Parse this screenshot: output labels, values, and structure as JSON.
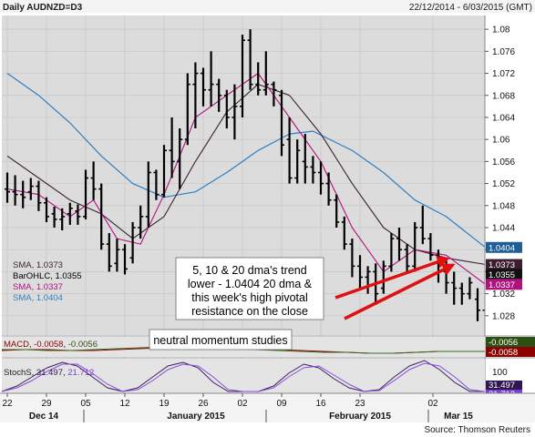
{
  "header": {
    "title": "Daily AUDNZD=D3",
    "range": "22/12/2014 - 6/03/2015 (GMT)"
  },
  "source": "Source: Thomson Reuters",
  "colors": {
    "panel_bg": "#dcdcdc",
    "bars": "#000000",
    "sma5": "#b0127d",
    "sma10": "#3b1f2e",
    "sma20": "#2f7fc1",
    "macd": "#8b0000",
    "macd_signal": "#3d6b1f",
    "stoch_k": "#3b1f5c",
    "stoch_d": "#8a4be0",
    "arrow": "#e01010"
  },
  "chart_data": {
    "type": "ohlc",
    "instrument": "AUDNZD=D3",
    "ylim": [
      1.0245,
      1.0825
    ],
    "yticks": [
      "1.08",
      "1.076",
      "1.072",
      "1.068",
      "1.064",
      "1.06",
      "1.056",
      "1.052",
      "1.048",
      "1.044",
      "1.04",
      "1.036",
      "1.032",
      "1.028"
    ],
    "xticks": [
      "22",
      "29",
      "05",
      "12",
      "19",
      "26",
      "02",
      "09",
      "16",
      "23",
      "02"
    ],
    "month_labels": [
      "Dec 14",
      "January 2015",
      "February 2015",
      "Mar 15"
    ],
    "ohlc": [
      {
        "o": 1.051,
        "h": 1.054,
        "l": 1.0485,
        "c": 1.0505
      },
      {
        "o": 1.0505,
        "h": 1.0535,
        "l": 1.048,
        "c": 1.05
      },
      {
        "o": 1.05,
        "h": 1.0525,
        "l": 1.0475,
        "c": 1.0495
      },
      {
        "o": 1.0505,
        "h": 1.053,
        "l": 1.049,
        "c": 1.0515
      },
      {
        "o": 1.0515,
        "h": 1.0525,
        "l": 1.047,
        "c": 1.0485
      },
      {
        "o": 1.0485,
        "h": 1.0495,
        "l": 1.045,
        "c": 1.046
      },
      {
        "o": 1.0465,
        "h": 1.0478,
        "l": 1.044,
        "c": 1.0455
      },
      {
        "o": 1.0455,
        "h": 1.0475,
        "l": 1.0435,
        "c": 1.046
      },
      {
        "o": 1.0465,
        "h": 1.0485,
        "l": 1.0445,
        "c": 1.0475
      },
      {
        "o": 1.047,
        "h": 1.0482,
        "l": 1.0445,
        "c": 1.046
      },
      {
        "o": 1.046,
        "h": 1.0545,
        "l": 1.0455,
        "c": 1.053
      },
      {
        "o": 1.053,
        "h": 1.056,
        "l": 1.049,
        "c": 1.051
      },
      {
        "o": 1.051,
        "h": 1.052,
        "l": 1.04,
        "c": 1.041
      },
      {
        "o": 1.041,
        "h": 1.043,
        "l": 1.036,
        "c": 1.037
      },
      {
        "o": 1.0375,
        "h": 1.042,
        "l": 1.036,
        "c": 1.04
      },
      {
        "o": 1.04,
        "h": 1.041,
        "l": 1.0355,
        "c": 1.0365
      },
      {
        "o": 1.0385,
        "h": 1.045,
        "l": 1.0375,
        "c": 1.044
      },
      {
        "o": 1.044,
        "h": 1.048,
        "l": 1.042,
        "c": 1.046
      },
      {
        "o": 1.046,
        "h": 1.056,
        "l": 1.044,
        "c": 1.054
      },
      {
        "o": 1.054,
        "h": 1.0545,
        "l": 1.049,
        "c": 1.05
      },
      {
        "o": 1.05,
        "h": 1.059,
        "l": 1.0495,
        "c": 1.058
      },
      {
        "o": 1.058,
        "h": 1.064,
        "l": 1.053,
        "c": 1.056
      },
      {
        "o": 1.056,
        "h": 1.062,
        "l": 1.051,
        "c": 1.06
      },
      {
        "o": 1.06,
        "h": 1.072,
        "l": 1.059,
        "c": 1.07
      },
      {
        "o": 1.07,
        "h": 1.074,
        "l": 1.062,
        "c": 1.072
      },
      {
        "o": 1.072,
        "h": 1.073,
        "l": 1.066,
        "c": 1.069
      },
      {
        "o": 1.069,
        "h": 1.076,
        "l": 1.066,
        "c": 1.07
      },
      {
        "o": 1.07,
        "h": 1.071,
        "l": 1.065,
        "c": 1.068
      },
      {
        "o": 1.068,
        "h": 1.069,
        "l": 1.062,
        "c": 1.064
      },
      {
        "o": 1.064,
        "h": 1.07,
        "l": 1.06,
        "c": 1.066
      },
      {
        "o": 1.066,
        "h": 1.079,
        "l": 1.064,
        "c": 1.078
      },
      {
        "o": 1.078,
        "h": 1.08,
        "l": 1.069,
        "c": 1.07
      },
      {
        "o": 1.07,
        "h": 1.074,
        "l": 1.068,
        "c": 1.069
      },
      {
        "o": 1.069,
        "h": 1.076,
        "l": 1.068,
        "c": 1.07
      },
      {
        "o": 1.07,
        "h": 1.0705,
        "l": 1.066,
        "c": 1.069
      },
      {
        "o": 1.068,
        "h": 1.069,
        "l": 1.057,
        "c": 1.059
      },
      {
        "o": 1.06,
        "h": 1.064,
        "l": 1.052,
        "c": 1.053
      },
      {
        "o": 1.053,
        "h": 1.06,
        "l": 1.052,
        "c": 1.058
      },
      {
        "o": 1.056,
        "h": 1.061,
        "l": 1.052,
        "c": 1.055
      },
      {
        "o": 1.055,
        "h": 1.057,
        "l": 1.052,
        "c": 1.054
      },
      {
        "o": 1.054,
        "h": 1.056,
        "l": 1.05,
        "c": 1.052
      },
      {
        "o": 1.052,
        "h": 1.054,
        "l": 1.048,
        "c": 1.049
      },
      {
        "o": 1.049,
        "h": 1.05,
        "l": 1.044,
        "c": 1.045
      },
      {
        "o": 1.045,
        "h": 1.046,
        "l": 1.04,
        "c": 1.041
      },
      {
        "o": 1.041,
        "h": 1.042,
        "l": 1.035,
        "c": 1.037
      },
      {
        "o": 1.037,
        "h": 1.039,
        "l": 1.033,
        "c": 1.035
      },
      {
        "o": 1.035,
        "h": 1.037,
        "l": 1.032,
        "c": 1.036
      },
      {
        "o": 1.036,
        "h": 1.0375,
        "l": 1.03,
        "c": 1.032
      },
      {
        "o": 1.033,
        "h": 1.038,
        "l": 1.032,
        "c": 1.037
      },
      {
        "o": 1.037,
        "h": 1.043,
        "l": 1.036,
        "c": 1.042
      },
      {
        "o": 1.042,
        "h": 1.044,
        "l": 1.038,
        "c": 1.04
      },
      {
        "o": 1.04,
        "h": 1.041,
        "l": 1.036,
        "c": 1.037
      },
      {
        "o": 1.037,
        "h": 1.045,
        "l": 1.036,
        "c": 1.044
      },
      {
        "o": 1.044,
        "h": 1.048,
        "l": 1.041,
        "c": 1.042
      },
      {
        "o": 1.042,
        "h": 1.043,
        "l": 1.038,
        "c": 1.039
      },
      {
        "o": 1.039,
        "h": 1.04,
        "l": 1.034,
        "c": 1.036
      },
      {
        "o": 1.036,
        "h": 1.038,
        "l": 1.032,
        "c": 1.034
      },
      {
        "o": 1.034,
        "h": 1.036,
        "l": 1.03,
        "c": 1.033
      },
      {
        "o": 1.033,
        "h": 1.034,
        "l": 1.03,
        "c": 1.032
      },
      {
        "o": 1.032,
        "h": 1.035,
        "l": 1.031,
        "c": 1.034
      },
      {
        "o": 1.031,
        "h": 1.033,
        "l": 1.027,
        "c": 1.029
      },
      {
        "o": 1.029,
        "h": 1.036,
        "l": 1.028,
        "c": 1.0355
      }
    ],
    "sma_labels": [
      {
        "name": "SMA, 1.0373",
        "color": "#3b1f2e"
      },
      {
        "name": "BarOHLC, 1.0355",
        "color": "#000000"
      },
      {
        "name": "SMA, 1.0337",
        "color": "#b0127d"
      },
      {
        "name": "SMA, 1.0404",
        "color": "#2f7fc1"
      }
    ],
    "price_badges": [
      {
        "value": "1.0404",
        "color": "#1f5f95",
        "y": 1.0404
      },
      {
        "value": "1.0373",
        "color": "#3b1f2e",
        "y": 1.0373
      },
      {
        "value": "1.0355",
        "color": "#111111",
        "y": 1.0355
      },
      {
        "value": "1.0337",
        "color": "#b0127d",
        "y": 1.0337
      }
    ],
    "sma20": [
      [
        0,
        1.072
      ],
      [
        4,
        1.068
      ],
      [
        8,
        1.063
      ],
      [
        12,
        1.057
      ],
      [
        16,
        1.052
      ],
      [
        20,
        1.0495
      ],
      [
        24,
        1.0505
      ],
      [
        28,
        1.054
      ],
      [
        32,
        1.058
      ],
      [
        36,
        1.061
      ],
      [
        39,
        1.0615
      ],
      [
        44,
        1.058
      ],
      [
        48,
        1.054
      ],
      [
        52,
        1.049
      ],
      [
        56,
        1.046
      ],
      [
        61,
        1.0404
      ]
    ],
    "sma10": [
      [
        0,
        1.057
      ],
      [
        4,
        1.053
      ],
      [
        8,
        1.049
      ],
      [
        12,
        1.0465
      ],
      [
        16,
        1.042
      ],
      [
        20,
        1.046
      ],
      [
        24,
        1.056
      ],
      [
        28,
        1.065
      ],
      [
        32,
        1.07
      ],
      [
        36,
        1.068
      ],
      [
        40,
        1.061
      ],
      [
        44,
        1.052
      ],
      [
        48,
        1.044
      ],
      [
        52,
        1.04
      ],
      [
        56,
        1.0385
      ],
      [
        61,
        1.0373
      ]
    ],
    "sma5": [
      [
        0,
        1.051
      ],
      [
        4,
        1.05
      ],
      [
        8,
        1.046
      ],
      [
        11,
        1.049
      ],
      [
        14,
        1.042
      ],
      [
        17,
        1.041
      ],
      [
        20,
        1.05
      ],
      [
        24,
        1.064
      ],
      [
        28,
        1.068
      ],
      [
        32,
        1.072
      ],
      [
        36,
        1.064
      ],
      [
        40,
        1.056
      ],
      [
        44,
        1.044
      ],
      [
        48,
        1.036
      ],
      [
        52,
        1.04
      ],
      [
        56,
        1.039
      ],
      [
        61,
        1.0337
      ]
    ],
    "annotation": {
      "lines": [
        "5, 10 & 20 dma's trend",
        "lower - 1.0404 20 dma &",
        "this week's high pivotal",
        "resistance on the close"
      ]
    },
    "macd": {
      "label_prefix": "MACD, ",
      "value1": "-0.0058",
      "value2": "-0.0056",
      "badges": [
        {
          "value": "-0.0056",
          "color": "#2e4f14"
        },
        {
          "value": "-0.0058",
          "color": "#8b0000"
        }
      ]
    },
    "stoch": {
      "label_prefix": "StochS, ",
      "value1": "31.497",
      "value2": "21.712",
      "tick": "100",
      "badges": [
        {
          "value": "31.497",
          "color": "#2e1650"
        },
        {
          "value": "21.712",
          "color": "#7a3fd0"
        }
      ]
    },
    "momentum_note": "neutral momentum studies"
  }
}
